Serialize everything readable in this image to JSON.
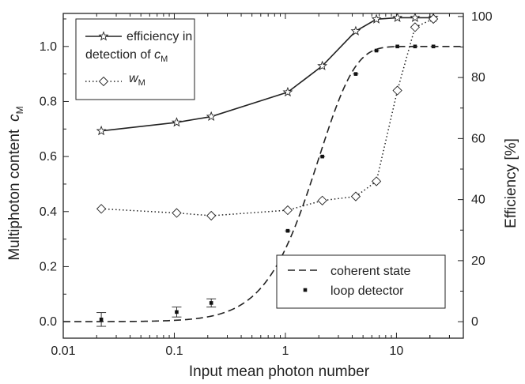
{
  "chart_data": {
    "type": "scatter",
    "xlabel": "Input mean photon number",
    "ylabel_left": "Multiphoton content",
    "ylabel_left_symbol": "c",
    "ylabel_left_symbol_sub": "M",
    "ylabel_right": "Efficiency [%]",
    "x_scale": "log",
    "xlim": [
      0.01,
      40
    ],
    "ylim_left": [
      -0.06,
      1.12
    ],
    "ylim_right": [
      -5.4,
      101
    ],
    "x_ticks": [
      0.01,
      0.1,
      1,
      10
    ],
    "x_tick_labels": [
      "0.01",
      "0.1",
      "1",
      "10"
    ],
    "y_left_ticks": [
      0.0,
      0.2,
      0.4,
      0.6,
      0.8,
      1.0
    ],
    "y_left_tick_labels": [
      "0.0",
      "0.2",
      "0.4",
      "0.6",
      "0.8",
      "1.0"
    ],
    "y_right_ticks": [
      0,
      20,
      40,
      60,
      80,
      100
    ],
    "y_right_tick_labels": [
      "0",
      "20",
      "40",
      "60",
      "80",
      "100"
    ],
    "legend_top": {
      "placement": "top-left",
      "entries": [
        {
          "text_prefix": "efficiency in",
          "text_line2": "detection of ",
          "symbol": "c",
          "symbol_sub": "M",
          "marker": "star",
          "line": "solid"
        },
        {
          "text_prefix": "",
          "symbol": "w",
          "symbol_sub": "M",
          "marker": "diamond",
          "line": "dotted"
        }
      ]
    },
    "legend_bottom": {
      "placement": "bottom-right",
      "entries": [
        {
          "text": "coherent state",
          "line": "dashed"
        },
        {
          "text": "loop detector",
          "marker": "square"
        }
      ]
    },
    "series": [
      {
        "axis": "right",
        "marker": "star",
        "line": "solid",
        "x": [
          0.022,
          0.105,
          0.215,
          1.05,
          2.15,
          4.3,
          6.6,
          10.2,
          14.7,
          21.5
        ],
        "y": [
          62.5,
          65.3,
          67.2,
          75.2,
          83.8,
          95.2,
          99.1,
          99.6,
          99.6,
          99.6
        ]
      },
      {
        "axis": "left",
        "marker": "diamond",
        "line": "dotted",
        "x": [
          0.022,
          0.105,
          0.215,
          1.05,
          2.15,
          4.3,
          6.6,
          10.2,
          14.7,
          21.5
        ],
        "y": [
          0.41,
          0.395,
          0.385,
          0.405,
          0.44,
          0.455,
          0.51,
          0.84,
          1.07,
          1.1
        ]
      },
      {
        "axis": "left",
        "marker": "square",
        "line": "none",
        "x": [
          0.022,
          0.105,
          0.215,
          1.05,
          2.15,
          4.3,
          6.6,
          10.2,
          14.7,
          21.5
        ],
        "y": [
          0.008,
          0.035,
          0.068,
          0.33,
          0.6,
          0.9,
          0.985,
          1.0,
          1.0,
          1.0
        ],
        "err": [
          0.025,
          0.018,
          0.015,
          0.004,
          0.004,
          0.004,
          0.004,
          0.003,
          0.003,
          0.003
        ]
      },
      {
        "axis": "left",
        "marker": "none",
        "line": "dashed",
        "function": "1 - (1 + n) * exp(-n)",
        "x_range": [
          0.01,
          40
        ]
      }
    ]
  }
}
